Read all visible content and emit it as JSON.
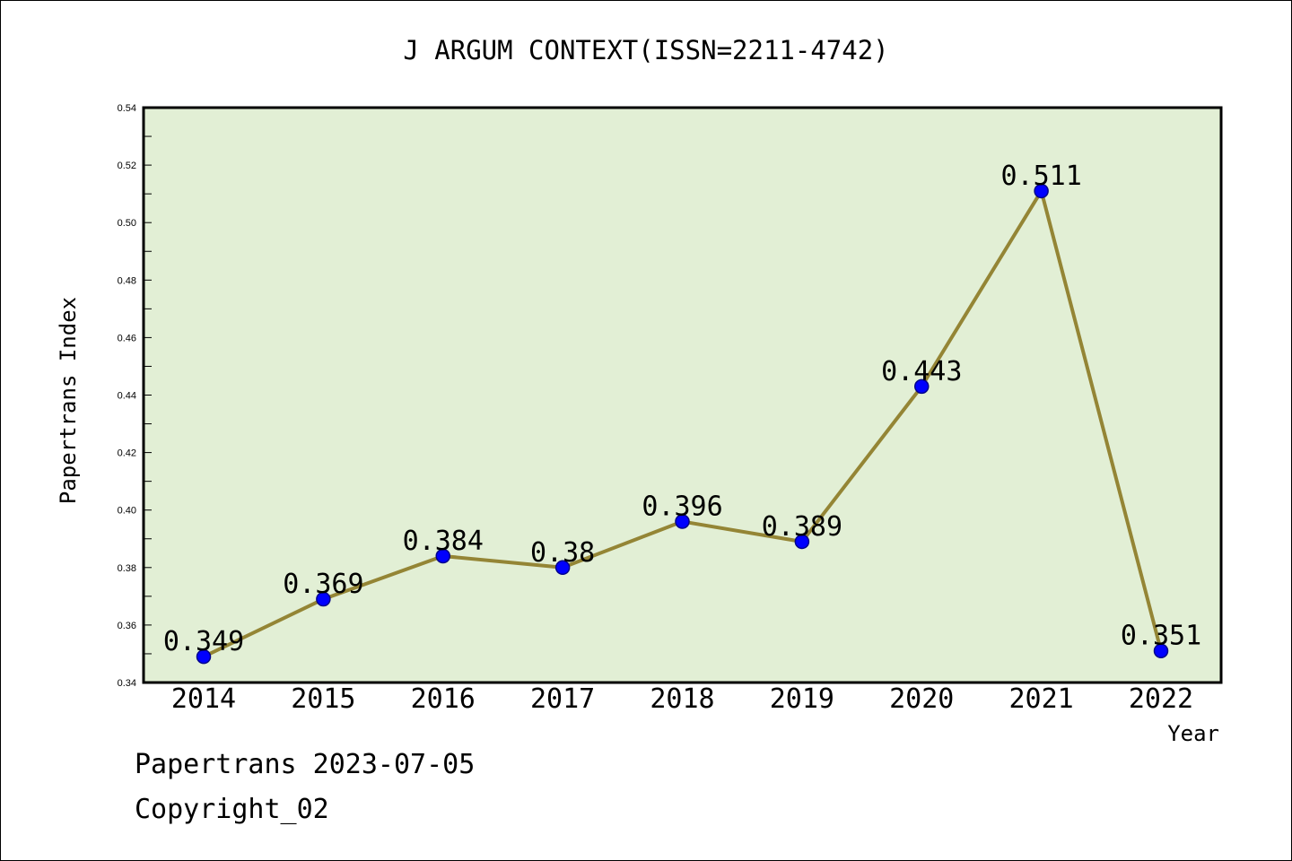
{
  "chart_data": {
    "type": "line",
    "title": "J ARGUM CONTEXT(ISSN=2211-4742)",
    "xlabel": "Year",
    "ylabel": "Papertrans Index",
    "categories": [
      "2014",
      "2015",
      "2016",
      "2017",
      "2018",
      "2019",
      "2020",
      "2021",
      "2022"
    ],
    "series": [
      {
        "values": [
          0.349,
          0.369,
          0.384,
          0.38,
          0.396,
          0.389,
          0.443,
          0.511,
          0.351
        ],
        "data_labels": [
          "0.349",
          "0.369",
          "0.384",
          "0.38",
          "0.396",
          "0.389",
          "0.443",
          "0.511",
          "0.351"
        ]
      }
    ],
    "ylim": [
      0.34,
      0.54
    ],
    "y_ticks": [
      "0.34",
      "0.36",
      "0.38",
      "0.40",
      "0.42",
      "0.44",
      "0.46",
      "0.48",
      "0.50",
      "0.52",
      "0.54"
    ],
    "grid": false,
    "colors": {
      "plot_background": "#e2efd5",
      "line": "#948535",
      "marker": "#0000ff",
      "marker_edge": "#00008b"
    }
  },
  "footer": {
    "date_text": "Papertrans 2023-07-05",
    "copyright_text": "Copyright_02"
  }
}
